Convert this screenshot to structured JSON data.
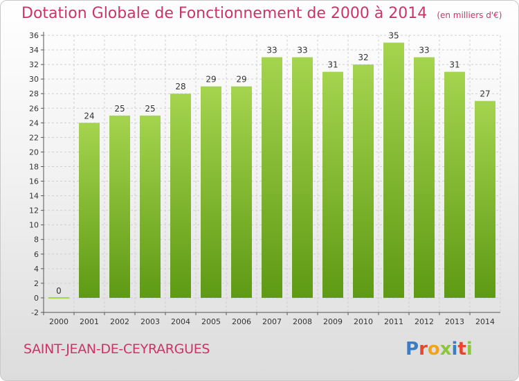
{
  "header": {
    "title": "Dotation Globale de Fonctionnement de 2000 à 2014",
    "unit": "(en milliers d'€)"
  },
  "footer": {
    "commune": "SAINT-JEAN-DE-CEYRARGUES",
    "logo_letters": [
      "P",
      "r",
      "o",
      "x",
      "i",
      "t",
      "i"
    ],
    "logo_colors": [
      "#3b7dc4",
      "#e8452c",
      "#f2a31b",
      "#8cc63f",
      "#3b7dc4",
      "#e8452c",
      "#8cc63f"
    ]
  },
  "colors": {
    "bar_top": "#a5d44f",
    "bar_bottom": "#5e9a14",
    "title": "#cc3366",
    "grid": "#d0d0d0"
  },
  "chart_data": {
    "type": "bar",
    "categories": [
      "2000",
      "2001",
      "2002",
      "2003",
      "2004",
      "2005",
      "2006",
      "2007",
      "2008",
      "2009",
      "2010",
      "2011",
      "2012",
      "2013",
      "2014"
    ],
    "values": [
      0,
      24,
      25,
      25,
      28,
      29,
      29,
      33,
      33,
      31,
      32,
      35,
      33,
      31,
      27
    ],
    "data_labels": [
      "0",
      "24",
      "25",
      "25",
      "28",
      "29",
      "29",
      "33",
      "33",
      "31",
      "32",
      "35",
      "33",
      "31",
      "27"
    ],
    "title": "Dotation Globale de Fonctionnement de 2000 à 2014",
    "ylim": [
      -2,
      36
    ],
    "yticks": [
      -2,
      0,
      2,
      4,
      6,
      8,
      10,
      12,
      14,
      16,
      18,
      20,
      22,
      24,
      26,
      28,
      30,
      32,
      34,
      36
    ],
    "grid": true
  }
}
